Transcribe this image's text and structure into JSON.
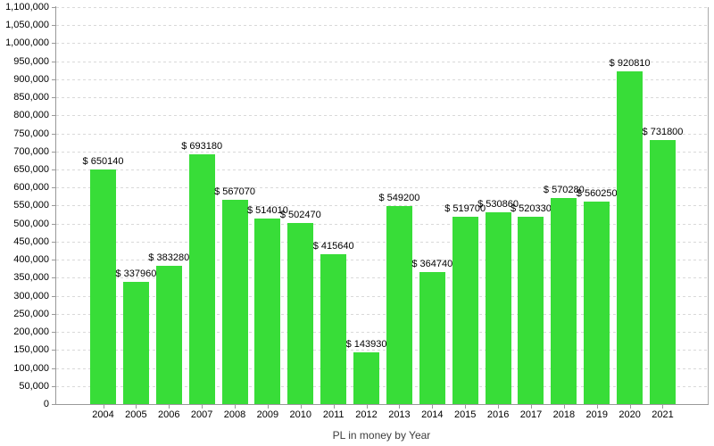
{
  "chart_data": {
    "type": "bar",
    "title": "",
    "xlabel": "PL in money by Year",
    "ylabel": "",
    "categories": [
      "2004",
      "2005",
      "2006",
      "2007",
      "2008",
      "2009",
      "2010",
      "2011",
      "2012",
      "2013",
      "2014",
      "2015",
      "2016",
      "2017",
      "2018",
      "2019",
      "2020",
      "2021"
    ],
    "values": [
      650140,
      337960,
      383280,
      693180,
      567070,
      514010,
      502470,
      415640,
      143930,
      549200,
      364740,
      519700,
      530860,
      520330,
      570280,
      560250,
      920810,
      731800
    ],
    "bar_labels": [
      "$ 650140",
      "$ 337960",
      "$ 383280",
      "$ 693180",
      "$ 567070",
      "$ 514010",
      "$ 502470",
      "$ 415640",
      "$ 143930",
      "$ 549200",
      "$ 364740",
      "$ 519700",
      "$ 530860",
      "$ 520330",
      "$ 570280",
      "$ 560250",
      "$ 920810",
      "$ 731800"
    ],
    "bar_label_prefix": "$ ",
    "ylim": [
      0,
      1100000
    ],
    "ytick_step": 50000,
    "ytick_labels": [
      "0",
      "50,000",
      "100,000",
      "150,000",
      "200,000",
      "250,000",
      "300,000",
      "350,000",
      "400,000",
      "450,000",
      "500,000",
      "550,000",
      "600,000",
      "650,000",
      "700,000",
      "750,000",
      "800,000",
      "850,000",
      "900,000",
      "950,000",
      "1,000,000",
      "1,050,000",
      "1,100,000"
    ],
    "grid": "dashed-horizontal",
    "legend": "none"
  },
  "colors": {
    "bar": "#38dd38",
    "grid": "#d9d9d9",
    "axis": "#999999",
    "frame_right": "#ababab",
    "tick_text": "#000000",
    "bar_label_text": "#000000",
    "axis_title_text": "#3d3d3d",
    "background": "#ffffff"
  }
}
